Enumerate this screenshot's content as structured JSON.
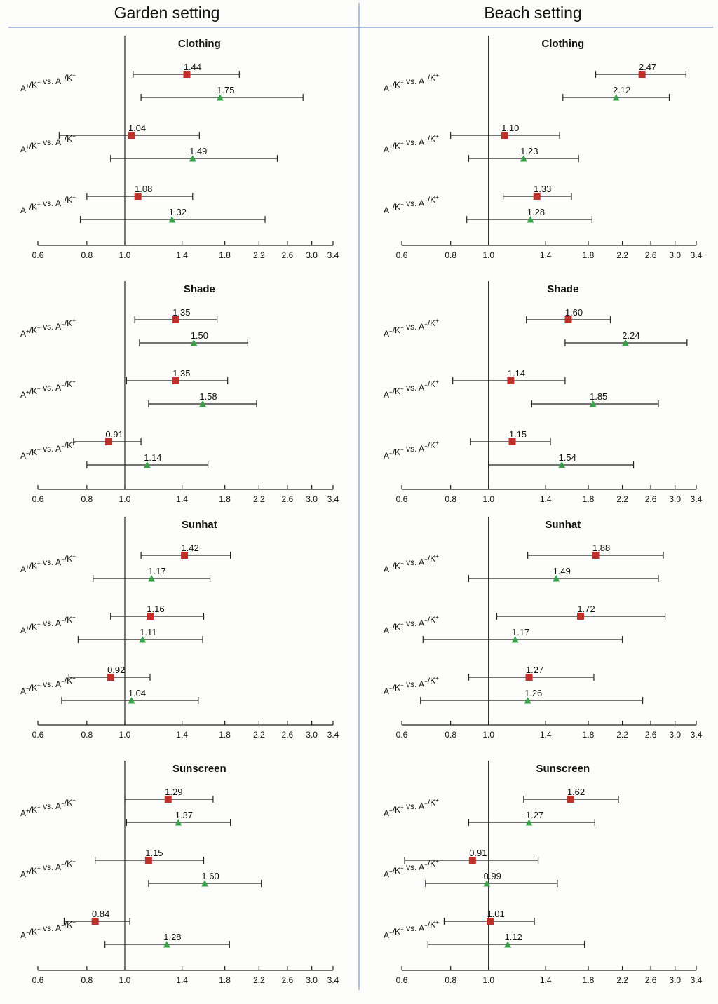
{
  "colors": {
    "series1": "#c0302b",
    "series2": "#3aa04a",
    "divider": "#7f97c8",
    "line": "#222222"
  },
  "chart_data": {
    "type": "scatter",
    "x_scale": "log",
    "xlim": [
      0.6,
      3.4
    ],
    "x_ticks": [
      "0.6",
      "0.8",
      "1.0",
      "1.4",
      "1.8",
      "2.2",
      "2.6",
      "3.0",
      "3.4"
    ],
    "reference_line": 1.0,
    "markers": {
      "series1": "square",
      "series2": "triangle"
    },
    "columns": [
      {
        "title": "Garden setting",
        "panels": [
          {
            "title": "Clothing",
            "comparisons": [
              {
                "label": "A+/K- vs. A-/K+",
                "series1": {
                  "value": 1.44,
                  "ci": [
                    1.05,
                    1.96
                  ]
                },
                "series2": {
                  "value": 1.75,
                  "ci": [
                    1.1,
                    2.85
                  ]
                }
              },
              {
                "label": "A+/K+ vs. A-/K+",
                "series1": {
                  "value": 1.04,
                  "ci": [
                    0.68,
                    1.55
                  ]
                },
                "series2": {
                  "value": 1.49,
                  "ci": [
                    0.92,
                    2.45
                  ]
                }
              },
              {
                "label": "A-/K- vs. A-/K+",
                "series1": {
                  "value": 1.08,
                  "ci": [
                    0.8,
                    1.49
                  ]
                },
                "series2": {
                  "value": 1.32,
                  "ci": [
                    0.77,
                    2.28
                  ]
                }
              }
            ]
          },
          {
            "title": "Shade",
            "comparisons": [
              {
                "label": "A+/K- vs. A-/K+",
                "series1": {
                  "value": 1.35,
                  "ci": [
                    1.06,
                    1.72
                  ]
                },
                "series2": {
                  "value": 1.5,
                  "ci": [
                    1.09,
                    2.06
                  ]
                }
              },
              {
                "label": "A+/K+ vs. A-/K+",
                "series1": {
                  "value": 1.35,
                  "ci": [
                    1.01,
                    1.83
                  ]
                },
                "series2": {
                  "value": 1.58,
                  "ci": [
                    1.15,
                    2.17
                  ]
                }
              },
              {
                "label": "A-/K- vs. A-/K+",
                "series1": {
                  "value": 0.91,
                  "ci": [
                    0.74,
                    1.1
                  ]
                },
                "series2": {
                  "value": 1.14,
                  "ci": [
                    0.8,
                    1.63
                  ]
                }
              }
            ]
          },
          {
            "title": "Sunhat",
            "comparisons": [
              {
                "label": "A+/K- vs. A-/K+",
                "series1": {
                  "value": 1.42,
                  "ci": [
                    1.1,
                    1.86
                  ]
                },
                "series2": {
                  "value": 1.17,
                  "ci": [
                    0.83,
                    1.65
                  ]
                }
              },
              {
                "label": "A+/K+ vs. A-/K+",
                "series1": {
                  "value": 1.16,
                  "ci": [
                    0.92,
                    1.59
                  ]
                },
                "series2": {
                  "value": 1.11,
                  "ci": [
                    0.76,
                    1.58
                  ]
                }
              },
              {
                "label": "A-/K- vs. A-/K+",
                "series1": {
                  "value": 0.92,
                  "ci": [
                    0.72,
                    1.16
                  ]
                },
                "series2": {
                  "value": 1.04,
                  "ci": [
                    0.69,
                    1.54
                  ]
                }
              }
            ]
          },
          {
            "title": "Sunscreen",
            "comparisons": [
              {
                "label": "A+/K- vs. A-/K+",
                "series1": {
                  "value": 1.29,
                  "ci": [
                    1.0,
                    1.68
                  ]
                },
                "series2": {
                  "value": 1.37,
                  "ci": [
                    1.01,
                    1.86
                  ]
                }
              },
              {
                "label": "A+/K+ vs. A-/K+",
                "series1": {
                  "value": 1.15,
                  "ci": [
                    0.84,
                    1.59
                  ]
                },
                "series2": {
                  "value": 1.6,
                  "ci": [
                    1.15,
                    2.23
                  ]
                }
              },
              {
                "label": "A-/K- vs. A-/K+",
                "series1": {
                  "value": 0.84,
                  "ci": [
                    0.7,
                    1.03
                  ]
                },
                "series2": {
                  "value": 1.28,
                  "ci": [
                    0.89,
                    1.85
                  ]
                }
              }
            ]
          }
        ]
      },
      {
        "title": "Beach setting",
        "panels": [
          {
            "title": "Clothing",
            "comparisons": [
              {
                "label": "A+/K- vs. A-/K+",
                "series1": {
                  "value": 2.47,
                  "ci": [
                    1.88,
                    3.2
                  ]
                },
                "series2": {
                  "value": 2.12,
                  "ci": [
                    1.55,
                    2.9
                  ]
                }
              },
              {
                "label": "A+/K+ vs. A-/K+",
                "series1": {
                  "value": 1.1,
                  "ci": [
                    0.8,
                    1.52
                  ]
                },
                "series2": {
                  "value": 1.23,
                  "ci": [
                    0.89,
                    1.7
                  ]
                }
              },
              {
                "label": "A-/K- vs. A-/K+",
                "series1": {
                  "value": 1.33,
                  "ci": [
                    1.09,
                    1.63
                  ]
                },
                "series2": {
                  "value": 1.28,
                  "ci": [
                    0.88,
                    1.84
                  ]
                }
              }
            ]
          },
          {
            "title": "Shade",
            "comparisons": [
              {
                "label": "A+/K- vs. A-/K+",
                "series1": {
                  "value": 1.6,
                  "ci": [
                    1.25,
                    2.05
                  ]
                },
                "series2": {
                  "value": 2.24,
                  "ci": [
                    1.57,
                    3.22
                  ]
                }
              },
              {
                "label": "A+/K+ vs. A-/K+",
                "series1": {
                  "value": 1.14,
                  "ci": [
                    0.81,
                    1.57
                  ]
                },
                "series2": {
                  "value": 1.85,
                  "ci": [
                    1.29,
                    2.72
                  ]
                }
              },
              {
                "label": "A-/K- vs. A-/K+",
                "series1": {
                  "value": 1.15,
                  "ci": [
                    0.9,
                    1.44
                  ]
                },
                "series2": {
                  "value": 1.54,
                  "ci": [
                    1.0,
                    2.35
                  ]
                }
              }
            ]
          },
          {
            "title": "Sunhat",
            "comparisons": [
              {
                "label": "A+/K- vs. A-/K+",
                "series1": {
                  "value": 1.88,
                  "ci": [
                    1.26,
                    2.8
                  ]
                },
                "series2": {
                  "value": 1.49,
                  "ci": [
                    0.89,
                    2.72
                  ]
                }
              },
              {
                "label": "A+/K+ vs. A-/K+",
                "series1": {
                  "value": 1.72,
                  "ci": [
                    1.05,
                    2.83
                  ]
                },
                "series2": {
                  "value": 1.17,
                  "ci": [
                    0.68,
                    2.2
                  ]
                }
              },
              {
                "label": "A-/K- vs. A-/K+",
                "series1": {
                  "value": 1.27,
                  "ci": [
                    0.89,
                    1.86
                  ]
                },
                "series2": {
                  "value": 1.26,
                  "ci": [
                    0.67,
                    2.48
                  ]
                }
              }
            ]
          },
          {
            "title": "Sunscreen",
            "comparisons": [
              {
                "label": "A+/K- vs. A-/K+",
                "series1": {
                  "value": 1.62,
                  "ci": [
                    1.23,
                    2.15
                  ]
                },
                "series2": {
                  "value": 1.27,
                  "ci": [
                    0.89,
                    1.87
                  ]
                }
              },
              {
                "label": "A+/K+ vs. A-/K+",
                "series1": {
                  "value": 0.91,
                  "ci": [
                    0.61,
                    1.34
                  ]
                },
                "series2": {
                  "value": 0.99,
                  "ci": [
                    0.69,
                    1.5
                  ]
                }
              },
              {
                "label": "A-/K- vs. A-/K+",
                "series1": {
                  "value": 1.01,
                  "ci": [
                    0.77,
                    1.31
                  ]
                },
                "series2": {
                  "value": 1.12,
                  "ci": [
                    0.7,
                    1.76
                  ]
                }
              }
            ]
          }
        ]
      }
    ]
  }
}
